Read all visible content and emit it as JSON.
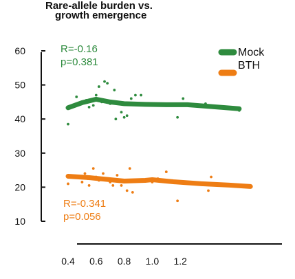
{
  "chart_data": {
    "type": "scatter",
    "title_lines": [
      "Rare-allele burden vs.",
      "growth emergence"
    ],
    "xlabel": "",
    "ylabel": "",
    "x_ticks": [
      0.4,
      0.6,
      0.8,
      1.0,
      1.2
    ],
    "x_tick_labels": [
      "0.4",
      "0.6",
      "0.8",
      "1.0",
      "1.2"
    ],
    "y_ticks": [
      10,
      20,
      30,
      40,
      50,
      60
    ],
    "y_tick_labels": [
      "10",
      "20",
      "30",
      "40",
      "50",
      "60"
    ],
    "xlim": [
      0.35,
      1.75
    ],
    "ylim": [
      8,
      62
    ],
    "grid": false,
    "legend_position": "top-right",
    "series": [
      {
        "name": "Mock",
        "color": "#2e8b3e",
        "stat_r": "R=-0.16",
        "stat_p": "p=0.381",
        "points": [
          {
            "x": 0.4,
            "y": 38.5
          },
          {
            "x": 0.46,
            "y": 46.5
          },
          {
            "x": 0.53,
            "y": 45.5
          },
          {
            "x": 0.55,
            "y": 43.5
          },
          {
            "x": 0.58,
            "y": 44.0
          },
          {
            "x": 0.6,
            "y": 47.0
          },
          {
            "x": 0.62,
            "y": 49.5
          },
          {
            "x": 0.64,
            "y": 45.0
          },
          {
            "x": 0.66,
            "y": 51.0
          },
          {
            "x": 0.68,
            "y": 50.5
          },
          {
            "x": 0.7,
            "y": 44.5
          },
          {
            "x": 0.73,
            "y": 48.5
          },
          {
            "x": 0.74,
            "y": 40.0
          },
          {
            "x": 0.78,
            "y": 42.0
          },
          {
            "x": 0.8,
            "y": 40.5
          },
          {
            "x": 0.82,
            "y": 41.0
          },
          {
            "x": 0.85,
            "y": 46.0
          },
          {
            "x": 0.88,
            "y": 47.0
          },
          {
            "x": 0.92,
            "y": 47.0
          },
          {
            "x": 1.02,
            "y": 44.0
          },
          {
            "x": 1.18,
            "y": 40.5
          },
          {
            "x": 1.22,
            "y": 46.0
          },
          {
            "x": 1.38,
            "y": 44.5
          },
          {
            "x": 1.62,
            "y": 42.5
          }
        ],
        "trend": [
          {
            "x": 0.4,
            "y": 43.3
          },
          {
            "x": 0.5,
            "y": 44.8
          },
          {
            "x": 0.6,
            "y": 45.8
          },
          {
            "x": 0.7,
            "y": 45.0
          },
          {
            "x": 0.8,
            "y": 44.5
          },
          {
            "x": 0.95,
            "y": 44.3
          },
          {
            "x": 1.1,
            "y": 44.2
          },
          {
            "x": 1.25,
            "y": 44.2
          },
          {
            "x": 1.4,
            "y": 43.7
          },
          {
            "x": 1.62,
            "y": 43.0
          }
        ]
      },
      {
        "name": "BTH",
        "color": "#ee7d14",
        "stat_r": "R=-0.341",
        "stat_p": "p=0.056",
        "points": [
          {
            "x": 0.4,
            "y": 21.0
          },
          {
            "x": 0.45,
            "y": 23.0
          },
          {
            "x": 0.5,
            "y": 21.5
          },
          {
            "x": 0.52,
            "y": 24.0
          },
          {
            "x": 0.54,
            "y": 22.5
          },
          {
            "x": 0.55,
            "y": 20.5
          },
          {
            "x": 0.58,
            "y": 25.5
          },
          {
            "x": 0.6,
            "y": 23.0
          },
          {
            "x": 0.62,
            "y": 22.0
          },
          {
            "x": 0.65,
            "y": 24.0
          },
          {
            "x": 0.68,
            "y": 22.5
          },
          {
            "x": 0.7,
            "y": 21.5
          },
          {
            "x": 0.72,
            "y": 20.5
          },
          {
            "x": 0.75,
            "y": 23.5
          },
          {
            "x": 0.78,
            "y": 20.5
          },
          {
            "x": 0.8,
            "y": 22.0
          },
          {
            "x": 0.82,
            "y": 19.0
          },
          {
            "x": 0.84,
            "y": 25.5
          },
          {
            "x": 0.86,
            "y": 18.5
          },
          {
            "x": 0.9,
            "y": 22.0
          },
          {
            "x": 1.0,
            "y": 21.5
          },
          {
            "x": 1.04,
            "y": 22.5
          },
          {
            "x": 1.1,
            "y": 24.5
          },
          {
            "x": 1.18,
            "y": 16.0
          },
          {
            "x": 1.4,
            "y": 19.0
          },
          {
            "x": 1.42,
            "y": 23.0
          }
        ],
        "trend": [
          {
            "x": 0.4,
            "y": 23.2
          },
          {
            "x": 0.55,
            "y": 22.8
          },
          {
            "x": 0.7,
            "y": 22.2
          },
          {
            "x": 0.8,
            "y": 21.8
          },
          {
            "x": 0.95,
            "y": 22.0
          },
          {
            "x": 1.0,
            "y": 22.2
          },
          {
            "x": 1.15,
            "y": 21.6
          },
          {
            "x": 1.35,
            "y": 21.0
          },
          {
            "x": 1.55,
            "y": 20.6
          },
          {
            "x": 1.7,
            "y": 20.2
          }
        ]
      }
    ]
  }
}
